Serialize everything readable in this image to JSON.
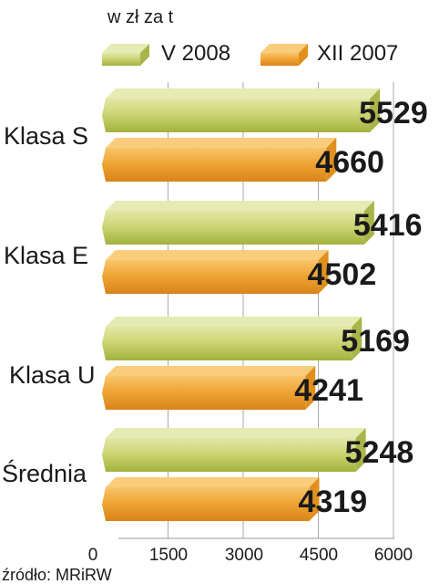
{
  "chart_data": {
    "type": "bar",
    "orientation": "horizontal",
    "unit_label": "w zł za t",
    "categories": [
      "Klasa S",
      "Klasa E",
      "Klasa U",
      "Średnia"
    ],
    "series": [
      {
        "name": "V 2008",
        "values": [
          5529,
          5416,
          5169,
          5248
        ],
        "color": "#c9d46a"
      },
      {
        "name": "XII 2007",
        "values": [
          4660,
          4502,
          4241,
          4319
        ],
        "color": "#f0a030"
      }
    ],
    "xlim": [
      0,
      6000
    ],
    "x_ticks": [
      0,
      1500,
      3000,
      4500,
      6000
    ],
    "x_tick_labels": [
      "0",
      "1500",
      "3000",
      "4500",
      "6000"
    ],
    "grid": true,
    "legend_position": "top",
    "source": "źródło: MRiRW"
  }
}
